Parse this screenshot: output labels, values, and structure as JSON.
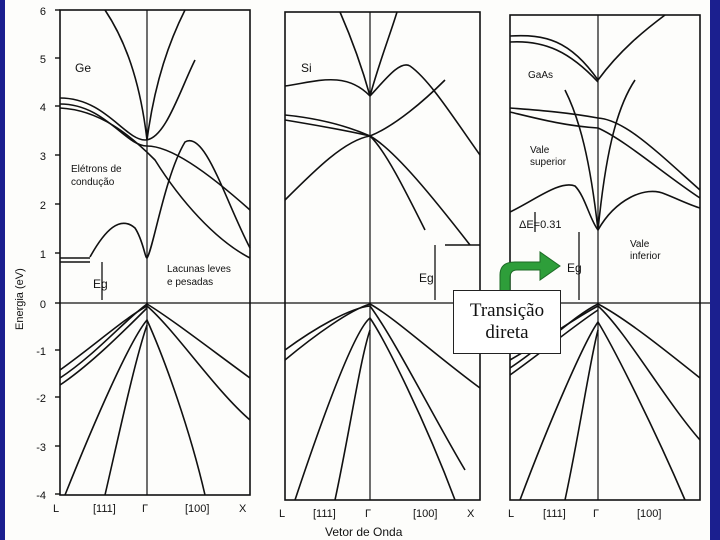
{
  "colors": {
    "frame": "#1b1f8f",
    "arrow": "#2e9e3a",
    "curves": "#111111"
  },
  "axis": {
    "ylabel": "Energia (eV)",
    "yticks": [
      "6",
      "5",
      "4",
      "3",
      "2",
      "1",
      "0",
      "-1",
      "-2",
      "-3",
      "-4"
    ],
    "xlabel": "Vetor de Onda"
  },
  "panels": [
    {
      "material": "Ge",
      "xticks": [
        "L",
        "[111]",
        "Γ",
        "[100]",
        "X"
      ]
    },
    {
      "material": "Si",
      "xticks": [
        "L",
        "[111]",
        "Γ",
        "[100]",
        "X"
      ]
    },
    {
      "material": "GaAs",
      "xticks": [
        "L",
        "[111]",
        "Γ",
        "[100]"
      ]
    }
  ],
  "annotations": {
    "electrons": [
      "Elétrons de",
      "condução"
    ],
    "holes": [
      "Lacunas leves",
      "e pesadas"
    ],
    "upper_valley": [
      "Vale",
      "superior"
    ],
    "lower_valley": [
      "Vale",
      "inferior"
    ],
    "eg": "Eg",
    "delta_e": "ΔE=0.31"
  },
  "callout": {
    "line1": "Transição",
    "line2": "direta"
  }
}
